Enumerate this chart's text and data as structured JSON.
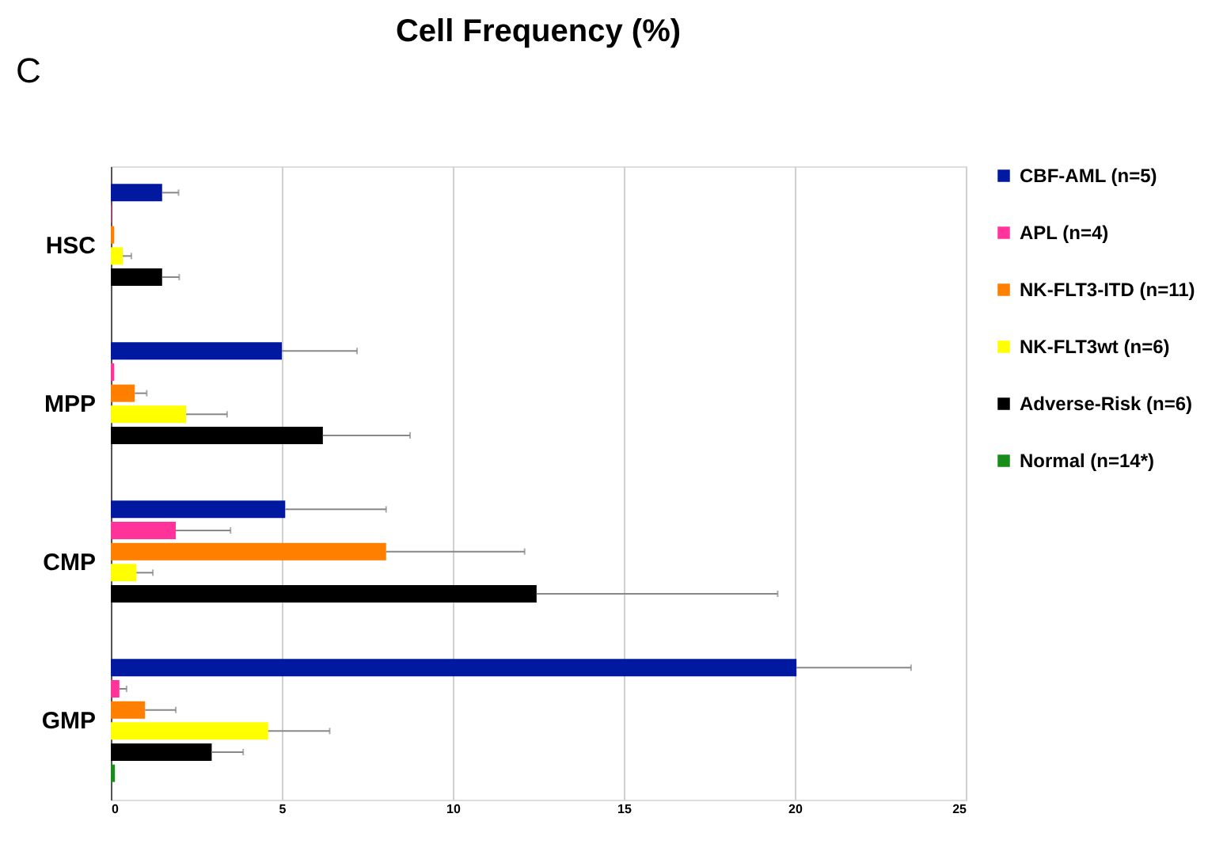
{
  "chart_data": {
    "type": "bar",
    "orientation": "horizontal",
    "title": "Cell Frequency (%)",
    "annotations": [
      "C"
    ],
    "categories": [
      "HSC",
      "MPP",
      "CMP",
      "GMP"
    ],
    "series": [
      {
        "name": "CBF-AML (n=5)",
        "color": "#0019a0",
        "values": [
          1.5,
          5.0,
          5.1,
          20.05
        ],
        "errors": [
          [
            1.5,
            1.98
          ],
          [
            5.0,
            7.2
          ],
          [
            5.1,
            8.05
          ],
          [
            20.05,
            23.4
          ]
        ]
      },
      {
        "name": "APL (n=4)",
        "color": "#ff3399",
        "values": [
          0.02,
          0.1,
          1.9,
          0.25
        ],
        "errors": [
          null,
          null,
          [
            1.9,
            3.5
          ],
          [
            0.25,
            0.46
          ]
        ]
      },
      {
        "name": "NK-FLT3-ITD (n=11)",
        "color": "#ff7f00",
        "values": [
          0.1,
          0.7,
          8.05,
          1.0
        ],
        "errors": [
          null,
          [
            0.7,
            1.05
          ],
          [
            8.05,
            12.1
          ],
          [
            1.0,
            1.9
          ]
        ]
      },
      {
        "name": "NK-FLT3wt (n=6)",
        "color": "#ffff00",
        "values": [
          0.35,
          2.2,
          0.75,
          4.6
        ],
        "errors": [
          [
            0.35,
            0.6
          ],
          [
            2.2,
            3.4
          ],
          [
            0.75,
            1.23
          ],
          [
            4.6,
            6.4
          ]
        ]
      },
      {
        "name": "Adverse-Risk (n=6)",
        "color": "#000000",
        "values": [
          1.5,
          6.2,
          12.45,
          2.95
        ],
        "errors": [
          [
            1.5,
            2.0
          ],
          [
            6.2,
            8.75
          ],
          [
            12.45,
            19.5
          ],
          [
            2.95,
            3.87
          ]
        ]
      },
      {
        "name": "Normal (n=14*)",
        "color": "#1a8c1a",
        "values": [
          null,
          null,
          null,
          0.12
        ],
        "errors": [
          null,
          null,
          null,
          null
        ]
      }
    ],
    "xlim": [
      0,
      25
    ],
    "xticks": [
      0,
      5,
      10,
      15,
      20,
      25
    ],
    "grid": "x",
    "legend": "right"
  }
}
